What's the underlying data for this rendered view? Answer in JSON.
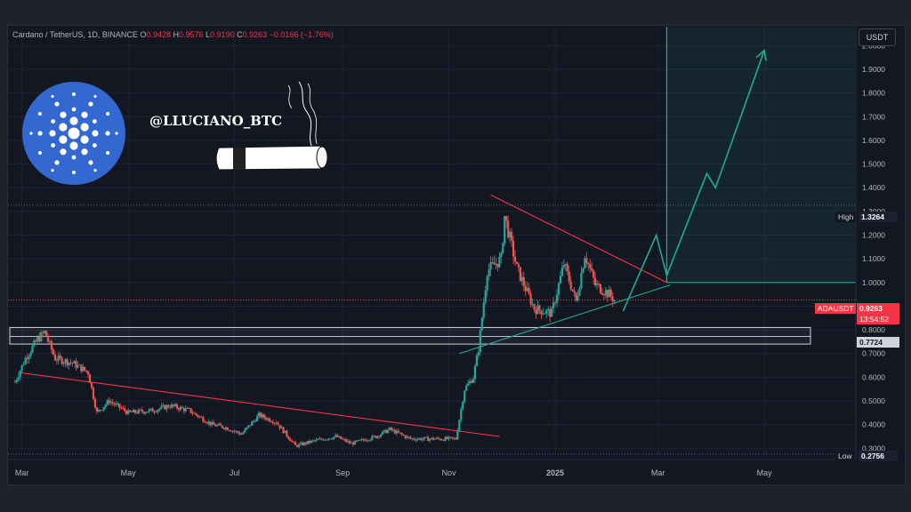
{
  "header": {
    "symbol": "Cardano / TetherUS, 1D, BINANCE",
    "o_label": "O",
    "o_value": "0.9428",
    "h_label": "H",
    "h_value": "0.9576",
    "l_label": "L",
    "l_value": "0.9190",
    "c_label": "C",
    "c_value": "0.9263",
    "change": "−0.0166 (−1.76%)"
  },
  "currency_button": "USDT",
  "watermark": "@LLUCIANO_BTC",
  "colors": {
    "up": "#26a69a",
    "down": "#ef5350",
    "accent": "#2962ff",
    "logo": "#3468d1",
    "projection": "#22ab94"
  },
  "price_tags": {
    "high_label": "High",
    "high_value": "1.3264",
    "low_label": "Low",
    "low_value": "0.2756",
    "symbol_label": "ADAUSDT",
    "last_value": "0.9263",
    "countdown": "13:54:52",
    "box_value": "0.7724"
  },
  "chart_data": {
    "type": "candlestick",
    "symbol": "ADAUSDT",
    "interval": "1D",
    "x_ticks": [
      "Mar",
      "May",
      "Jul",
      "Sep",
      "Nov",
      "2025",
      "Mar",
      "May"
    ],
    "y_ticks": [
      "0.3000",
      "0.4000",
      "0.5000",
      "0.6000",
      "0.7000",
      "0.8000",
      "0.9000",
      "1.0000",
      "1.1000",
      "1.2000",
      "1.3000",
      "1.4000",
      "1.5000",
      "1.6000",
      "1.7000",
      "1.8000",
      "1.9000",
      "2.0000"
    ],
    "ylim": [
      0.26,
      2.08
    ],
    "grid": true,
    "price_path": [
      [
        "2024-02-26",
        0.58
      ],
      [
        "2024-03-03",
        0.68
      ],
      [
        "2024-03-10",
        0.76
      ],
      [
        "2024-03-14",
        0.79
      ],
      [
        "2024-03-20",
        0.68
      ],
      [
        "2024-03-30",
        0.66
      ],
      [
        "2024-04-08",
        0.62
      ],
      [
        "2024-04-13",
        0.45
      ],
      [
        "2024-04-20",
        0.5
      ],
      [
        "2024-05-01",
        0.45
      ],
      [
        "2024-05-15",
        0.46
      ],
      [
        "2024-05-25",
        0.48
      ],
      [
        "2024-06-05",
        0.46
      ],
      [
        "2024-06-18",
        0.4
      ],
      [
        "2024-06-25",
        0.39
      ],
      [
        "2024-07-05",
        0.36
      ],
      [
        "2024-07-15",
        0.44
      ],
      [
        "2024-07-25",
        0.41
      ],
      [
        "2024-08-05",
        0.31
      ],
      [
        "2024-08-15",
        0.33
      ],
      [
        "2024-08-28",
        0.35
      ],
      [
        "2024-09-06",
        0.32
      ],
      [
        "2024-09-20",
        0.35
      ],
      [
        "2024-09-28",
        0.38
      ],
      [
        "2024-10-10",
        0.34
      ],
      [
        "2024-10-25",
        0.34
      ],
      [
        "2024-11-05",
        0.34
      ],
      [
        "2024-11-10",
        0.55
      ],
      [
        "2024-11-15",
        0.6
      ],
      [
        "2024-11-18",
        0.72
      ],
      [
        "2024-11-23",
        1.05
      ],
      [
        "2024-12-01",
        1.1
      ],
      [
        "2024-12-03",
        1.28
      ],
      [
        "2024-12-10",
        1.06
      ],
      [
        "2024-12-20",
        0.89
      ],
      [
        "2024-12-30",
        0.87
      ],
      [
        "2025-01-06",
        1.08
      ],
      [
        "2025-01-13",
        0.92
      ],
      [
        "2025-01-18",
        1.12
      ],
      [
        "2025-01-24",
        0.99
      ],
      [
        "2025-02-01",
        0.95
      ],
      [
        "2025-02-04",
        0.9263
      ]
    ],
    "lines": [
      {
        "name": "resistance-downtrend",
        "color": "#f23645",
        "points": [
          [
            "2024-02-28",
            0.62
          ],
          [
            "2024-11-30",
            0.35
          ]
        ]
      },
      {
        "name": "triangle-upper",
        "color": "#f23645",
        "points": [
          [
            "2024-11-25",
            1.37
          ],
          [
            "2025-03-06",
            1.0
          ]
        ]
      },
      {
        "name": "triangle-lower",
        "color": "#22ab94",
        "points": [
          [
            "2024-11-07",
            0.7
          ],
          [
            "2025-03-08",
            0.99
          ]
        ]
      }
    ],
    "support_zone": {
      "from": 0.74,
      "to": 0.81
    },
    "projection_path": [
      [
        "2025-02-09",
        0.88
      ],
      [
        "2025-02-28",
        1.2
      ],
      [
        "2025-03-06",
        1.03
      ],
      [
        "2025-03-29",
        1.46
      ],
      [
        "2025-04-03",
        1.4
      ],
      [
        "2025-05-01",
        1.98
      ]
    ],
    "projection_zone": {
      "from_date": "2025-03-06",
      "top": 2.08,
      "bottom": 1.0
    }
  }
}
